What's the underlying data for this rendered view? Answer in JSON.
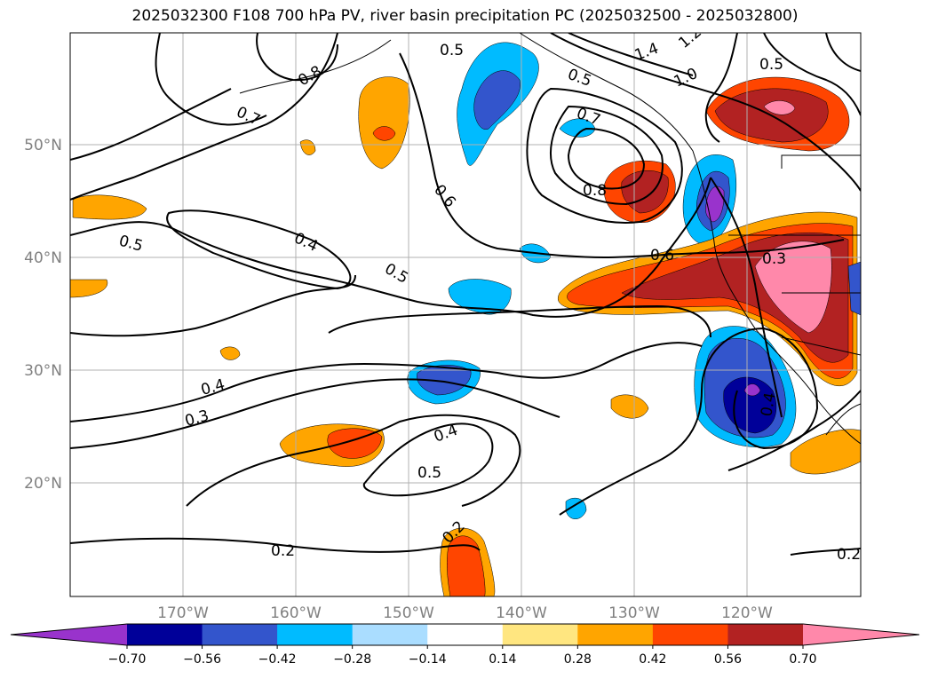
{
  "title": "2025032300 F108 700 hPa PV, river basin precipitation PC (2025032500 - 2025032800)",
  "lat_labels": [
    "50°N",
    "40°N",
    "30°N",
    "20°N"
  ],
  "lon_labels": [
    "170°W",
    "160°W",
    "150°W",
    "140°W",
    "130°W",
    "120°W"
  ],
  "colorbar": {
    "colors": [
      "#9933cc",
      "#000099",
      "#3355cc",
      "#00bbff",
      "#aaddff",
      "#ffffff",
      "#ffe680",
      "#ffa500",
      "#ff4500",
      "#b22222",
      "#ff88aa"
    ],
    "labels": [
      "−0.70",
      "−0.56",
      "−0.42",
      "−0.28",
      "−0.14",
      "0.14",
      "0.28",
      "0.42",
      "0.56",
      "0.70"
    ]
  },
  "contour_labels": [
    "0.5",
    "1.4",
    "1.2",
    "0.5",
    "0.8",
    "0.7",
    "0.7",
    "1.0",
    "0.5",
    "0.6",
    "0.8",
    "0.5",
    "0.4",
    "0.5",
    "0.6",
    "0.3",
    "0.4",
    "0.3",
    "0.4",
    "0.5",
    "0.4",
    "0.2",
    "0.2",
    "0.2"
  ],
  "colors": {
    "contour": "#000000",
    "coast": "#000000",
    "grid": "#b0b0b0",
    "axis_labels": "#808080"
  }
}
